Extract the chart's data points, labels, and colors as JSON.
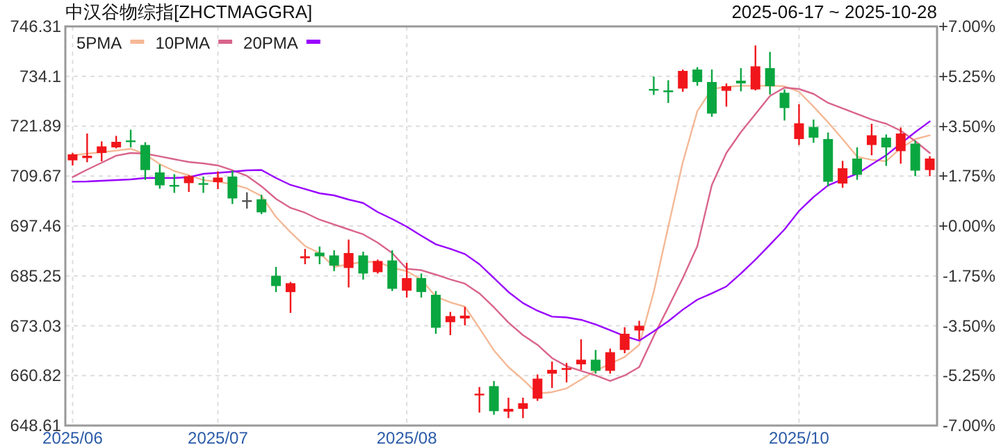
{
  "chart_data": {
    "type": "candlestick",
    "title": "中汉谷物综指[ZHCTMAGGRA]",
    "subtitle": "2025-06-17 ~ 2025-10-28",
    "categories": [
      "2025/06",
      null,
      null,
      null,
      null,
      null,
      null,
      null,
      null,
      null,
      "2025/07",
      null,
      null,
      null,
      null,
      null,
      null,
      null,
      null,
      null,
      null,
      null,
      null,
      "2025/08",
      null,
      null,
      null,
      null,
      null,
      null,
      null,
      null,
      null,
      null,
      null,
      null,
      null,
      null,
      null,
      null,
      null,
      null,
      null,
      null,
      null,
      null,
      null,
      null,
      null,
      null,
      "2025/10",
      null,
      null,
      null,
      null,
      null,
      null,
      null,
      null,
      null
    ],
    "ohlc": [
      [
        713.53,
        715.33,
        712.27,
        714.99
      ],
      [
        714.08,
        720.1,
        713.06,
        714.66
      ],
      [
        715.33,
        718.16,
        713.29,
        716.94
      ],
      [
        716.7,
        719.52,
        716.46,
        718.06
      ],
      [
        718.4,
        721.02,
        716.7,
        718.06
      ],
      [
        717.28,
        717.96,
        708.76,
        711.15
      ],
      [
        710.57,
        712.51,
        706.59,
        707.41
      ],
      [
        707.5,
        710.13,
        705.57,
        707.2
      ],
      [
        707.95,
        709.89,
        705.8,
        709.65
      ],
      [
        707.95,
        709.55,
        705.57,
        707.61
      ],
      [
        708.19,
        710.81,
        706.49,
        709.31
      ],
      [
        709.55,
        711.01,
        702.84,
        704.2
      ],
      [
        703.76,
        705.7,
        701.72,
        703.76
      ],
      [
        704.0,
        705.12,
        700.36,
        700.8
      ],
      [
        685.28,
        687.42,
        681.27,
        682.76
      ],
      [
        681.27,
        683.78,
        676.19,
        683.45
      ],
      [
        689.56,
        691.85,
        688.1,
        690.04
      ],
      [
        690.93,
        692.43,
        688.1,
        690.04
      ],
      [
        690.25,
        691.51,
        686.39,
        687.76
      ],
      [
        687.18,
        694.13,
        682.42,
        690.83
      ],
      [
        690.25,
        691.17,
        684.33,
        685.82
      ],
      [
        686.16,
        689.23,
        685.82,
        688.89
      ],
      [
        689.02,
        691.51,
        681.53,
        682.08
      ],
      [
        681.64,
        688.44,
        679.94,
        684.7
      ],
      [
        684.7,
        685.82,
        679.94,
        681.3
      ],
      [
        680.61,
        681.53,
        671.08,
        672.55
      ],
      [
        673.91,
        676.43,
        670.74,
        675.4
      ],
      [
        674.83,
        677.65,
        673.13,
        675.51
      ],
      [
        656.2,
        658.04,
        651.78,
        656.4
      ],
      [
        658.25,
        659.51,
        651.24,
        652.13
      ],
      [
        652.02,
        655.43,
        650.42,
        652.7
      ],
      [
        652.7,
        655.43,
        650.42,
        654.06
      ],
      [
        655.19,
        661.11,
        654.64,
        660.09
      ],
      [
        661.31,
        664.28,
        657.81,
        662.24
      ],
      [
        662.24,
        663.94,
        659.17,
        662.68
      ],
      [
        663.6,
        669.72,
        662.24,
        664.72
      ],
      [
        664.72,
        667.11,
        661.31,
        662.0
      ],
      [
        662.0,
        667.44,
        661.31,
        666.56
      ],
      [
        667.11,
        672.68,
        666.32,
        671.08
      ],
      [
        671.87,
        674.25,
        669.62,
        673.03
      ],
      [
        731.0,
        734.06,
        729.53,
        730.9
      ],
      [
        730.65,
        733.14,
        727.59,
        730.21
      ],
      [
        731.1,
        735.76,
        730.31,
        735.42
      ],
      [
        735.76,
        736.34,
        731.78,
        732.7
      ],
      [
        732.7,
        735.76,
        724.19,
        724.97
      ],
      [
        730.55,
        732.36,
        726.67,
        731.67
      ],
      [
        733.03,
        736.1,
        730.42,
        732.36
      ],
      [
        730.89,
        741.65,
        730.65,
        736.54
      ],
      [
        736.1,
        740.08,
        729.63,
        731.67
      ],
      [
        730.07,
        730.89,
        723.27,
        726.33
      ],
      [
        718.74,
        727.25,
        717.28,
        722.59
      ],
      [
        721.7,
        723.51,
        717.82,
        719.08
      ],
      [
        718.74,
        720.34,
        707.16,
        708.29
      ],
      [
        707.85,
        713.4,
        706.83,
        711.59
      ],
      [
        713.97,
        716.7,
        708.76,
        709.99
      ],
      [
        717.28,
        722.48,
        714.76,
        719.66
      ],
      [
        719.08,
        719.86,
        712.17,
        716.7
      ],
      [
        715.78,
        721.57,
        712.71,
        720.1
      ],
      [
        717.62,
        718.4,
        709.65,
        711.01
      ],
      [
        711.15,
        714.55,
        709.65,
        713.97
      ]
    ],
    "colors": [
      "#f0161b",
      "#f0161b",
      "#f0161b",
      "#f0161b",
      "#0aa640",
      "#0aa640",
      "#0aa640",
      "#0aa640",
      "#f0161b",
      "#0aa640",
      "#f0161b",
      "#0aa640",
      "#555555",
      "#0aa640",
      "#0aa640",
      "#f0161b",
      "#f0161b",
      "#0aa640",
      "#0aa640",
      "#f0161b",
      "#0aa640",
      "#f0161b",
      "#0aa640",
      "#f0161b",
      "#0aa640",
      "#0aa640",
      "#f0161b",
      "#f0161b",
      "#f0161b",
      "#0aa640",
      "#f0161b",
      "#f0161b",
      "#f0161b",
      "#f0161b",
      "#f0161b",
      "#f0161b",
      "#0aa640",
      "#f0161b",
      "#f0161b",
      "#f0161b",
      "#0aa640",
      "#0aa640",
      "#f0161b",
      "#0aa640",
      "#0aa640",
      "#f0161b",
      "#0aa640",
      "#f0161b",
      "#0aa640",
      "#0aa640",
      "#f0161b",
      "#0aa640",
      "#0aa640",
      "#f0161b",
      "#0aa640",
      "#f0161b",
      "#0aa640",
      "#f0161b",
      "#0aa640",
      "#f0161b"
    ],
    "series": [
      {
        "name": "5PMA",
        "type": "line",
        "color": "#f5b895",
        "values": [
          714.76,
          715.17,
          715.51,
          715.91,
          716.36,
          715.0,
          712.61,
          710.91,
          709.89,
          708.7,
          708.29,
          707.68,
          706.66,
          704.78,
          699.68,
          695.93,
          692.53,
          690.83,
          687.42,
          688.1,
          688.68,
          688.68,
          687.25,
          686.4,
          684.36,
          680.17,
          678.75,
          677.72,
          672.45,
          667.0,
          662.91,
          659.85,
          656.45,
          656.79,
          657.71,
          659.85,
          662.0,
          663.76,
          665.4,
          668.36,
          681.3,
          697.29,
          713.06,
          725.55,
          731.01,
          731.51,
          731.78,
          731.78,
          731.78,
          731.67,
          730.31,
          726.67,
          722.83,
          718.74,
          714.42,
          713.66,
          713.32,
          716.54,
          718.74,
          719.65
        ]
      },
      {
        "name": "10PMA",
        "type": "line",
        "color": "#d9648c",
        "values": [
          709.45,
          711.25,
          712.95,
          714.66,
          715.33,
          715.17,
          714.49,
          713.8,
          713.12,
          712.78,
          712.27,
          711.08,
          709.72,
          707.17,
          704.1,
          701.89,
          700.7,
          699.0,
          697.81,
          696.61,
          695.42,
          693.38,
          690.83,
          686.98,
          686.64,
          685.55,
          684.36,
          683.34,
          680.96,
          677.55,
          673.81,
          670.74,
          668.36,
          665.13,
          663.15,
          662.0,
          660.87,
          659.51,
          660.87,
          662.91,
          670.5,
          677.55,
          684.7,
          692.53,
          707.51,
          715.33,
          720.44,
          724.87,
          729.29,
          731.33,
          730.99,
          729.8,
          727.59,
          726.23,
          724.87,
          723.51,
          722.48,
          720.78,
          718.23,
          715.33
        ]
      },
      {
        "name": "20PMA",
        "type": "line",
        "color": "#9900ff",
        "values": [
          708.29,
          708.36,
          708.53,
          708.7,
          708.87,
          709.21,
          709.21,
          709.21,
          709.38,
          710.23,
          710.47,
          710.74,
          711.08,
          711.15,
          709.21,
          707.51,
          706.49,
          705.46,
          704.95,
          703.93,
          703.08,
          700.87,
          699.17,
          697.29,
          695.08,
          692.97,
          691.85,
          690.59,
          688.1,
          684.7,
          681.3,
          678.58,
          676.7,
          675.27,
          675.07,
          674.49,
          673.36,
          671.94,
          670.51,
          669.38,
          671.66,
          674.15,
          676.97,
          679.42,
          680.96,
          682.66,
          685.82,
          689.23,
          692.87,
          696.61,
          701.14,
          704.54,
          707.4,
          708.87,
          710.23,
          712.51,
          714.76,
          717.62,
          720.44,
          723.06
        ]
      }
    ],
    "ylim": [
      648.61,
      746.31
    ],
    "yticks": [
      648.61,
      660.82,
      673.03,
      685.25,
      697.46,
      709.67,
      721.89,
      734.1,
      746.31
    ],
    "y2lim": [
      -7,
      7
    ],
    "y2ticks": [
      {
        "value": 7,
        "label": "+7.00%"
      },
      {
        "value": 5.25,
        "label": "+5.25%"
      },
      {
        "value": 3.5,
        "label": "+3.50%"
      },
      {
        "value": 1.75,
        "label": "+1.75%"
      },
      {
        "value": 0,
        "label": "+0.00%"
      },
      {
        "value": -1.75,
        "label": "-1.75%"
      },
      {
        "value": -3.5,
        "label": "-3.50%"
      },
      {
        "value": -5.25,
        "label": "-5.25%"
      },
      {
        "value": -7,
        "label": "-7.00%"
      }
    ],
    "grid": true,
    "legend": "top left"
  }
}
